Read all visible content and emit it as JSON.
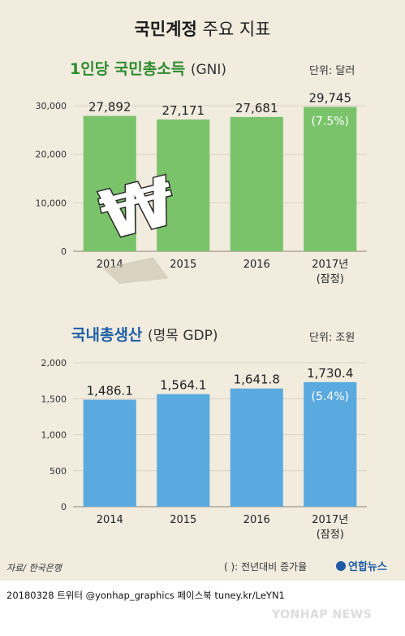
{
  "title": {
    "bold": "국민계정",
    "rest": "주요 지표"
  },
  "colors": {
    "gni_bar": "#7ac36a",
    "gni_title": "#2e8b2e",
    "gdp_bar": "#5aaae0",
    "gdp_title": "#1f5fa6",
    "panel": "#f1ecde",
    "grid": "#d8d2c2"
  },
  "gni": {
    "title": "1인당 국민총소득",
    "title_sub": "(GNI)",
    "unit": "단위: 달러"
  },
  "gdp": {
    "title": "국내총생산",
    "title_sub": "(명목 GDP)",
    "unit": "단위: 조원"
  },
  "icon": "won-sign-icon",
  "footer": {
    "source": "자료/ 한국은행",
    "legend": "(   ): 전년대비 증가율",
    "brand": "연합뉴스",
    "credit": "20180328  트위터 @yonhap_graphics  페이스북 tuney.kr/LeYN1",
    "watermark": "YONHAP NEWS"
  },
  "chart_data": [
    {
      "type": "bar",
      "title": "1인당 국민총소득 (GNI)",
      "unit": "단위: 달러",
      "categories": [
        "2014",
        "2015",
        "2016",
        "2017년"
      ],
      "category_notes": [
        "",
        "",
        "",
        "(잠정)"
      ],
      "values": [
        27892,
        27171,
        27681,
        29745
      ],
      "value_labels": [
        "27,892",
        "27,171",
        "27,681",
        "29,745"
      ],
      "annotation": "(7.5%)",
      "yticks": [
        0,
        10000,
        20000,
        30000
      ],
      "ytick_labels": [
        "0",
        "10,000",
        "20,000",
        "30,000"
      ],
      "ylim": [
        0,
        30000
      ]
    },
    {
      "type": "bar",
      "title": "국내총생산 (명목 GDP)",
      "unit": "단위: 조원",
      "categories": [
        "2014",
        "2015",
        "2016",
        "2017년"
      ],
      "category_notes": [
        "",
        "",
        "",
        "(잠정)"
      ],
      "values": [
        1486.1,
        1564.1,
        1641.8,
        1730.4
      ],
      "value_labels": [
        "1,486.1",
        "1,564.1",
        "1,641.8",
        "1,730.4"
      ],
      "annotation": "(5.4%)",
      "yticks": [
        0,
        500,
        1000,
        1500,
        2000
      ],
      "ytick_labels": [
        "0",
        "500",
        "1,000",
        "1,500",
        "2,000"
      ],
      "ylim": [
        0,
        2000
      ]
    }
  ]
}
